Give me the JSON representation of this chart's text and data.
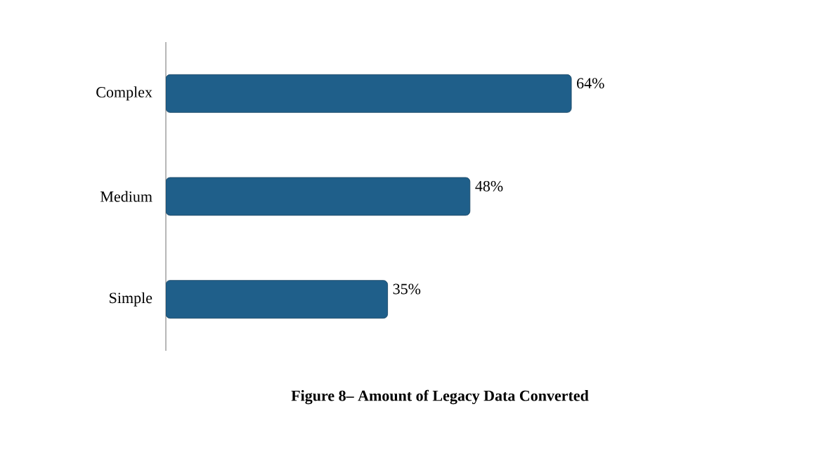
{
  "chart_data": {
    "type": "bar",
    "orientation": "horizontal",
    "title": "Figure 8– Amount of Legacy Data Converted",
    "categories": [
      "Complex",
      "Medium",
      "Simple"
    ],
    "values": [
      64,
      48,
      35
    ],
    "value_labels": [
      "64%",
      "48%",
      "35%"
    ],
    "color": "#1f5f8a",
    "tick_labels": "y"
  }
}
